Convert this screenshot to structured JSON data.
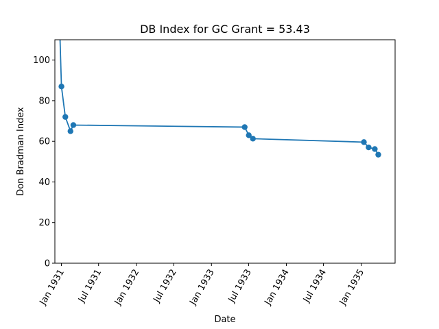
{
  "chart_data": {
    "type": "line",
    "title": "DB Index for GC Grant = 53.43",
    "xlabel": "Date",
    "ylabel": "Don Bradman Index",
    "ylim": [
      0,
      110
    ],
    "y_ticks": [
      0,
      20,
      40,
      60,
      80,
      100
    ],
    "x_ticks": [
      {
        "date": "1931-01-01",
        "label": "Jan 1931"
      },
      {
        "date": "1931-07-01",
        "label": "Jul 1931"
      },
      {
        "date": "1932-01-01",
        "label": "Jan 1932"
      },
      {
        "date": "1932-07-01",
        "label": "Jul 1932"
      },
      {
        "date": "1933-01-01",
        "label": "Jan 1933"
      },
      {
        "date": "1933-07-01",
        "label": "Jul 1933"
      },
      {
        "date": "1934-01-01",
        "label": "Jan 1934"
      },
      {
        "date": "1934-07-01",
        "label": "Jul 1934"
      },
      {
        "date": "1935-01-01",
        "label": "Jan 1935"
      }
    ],
    "xlim": [
      "1930-11-30",
      "1935-06-15"
    ],
    "grid": false,
    "series": [
      {
        "color": "#1f77b4",
        "points": [
          {
            "x": "1930-12-20",
            "y": 128
          },
          {
            "x": "1931-01-01",
            "y": 87
          },
          {
            "x": "1931-01-20",
            "y": 72
          },
          {
            "x": "1931-02-14",
            "y": 65
          },
          {
            "x": "1931-02-28",
            "y": 68
          },
          {
            "x": "1933-06-12",
            "y": 67
          },
          {
            "x": "1933-07-02",
            "y": 63
          },
          {
            "x": "1933-07-22",
            "y": 61.3
          },
          {
            "x": "1935-01-14",
            "y": 59.6
          },
          {
            "x": "1935-02-06",
            "y": 57
          },
          {
            "x": "1935-03-08",
            "y": 56.2
          },
          {
            "x": "1935-03-25",
            "y": 53.43
          }
        ],
        "marker_from_index": 1
      }
    ]
  }
}
